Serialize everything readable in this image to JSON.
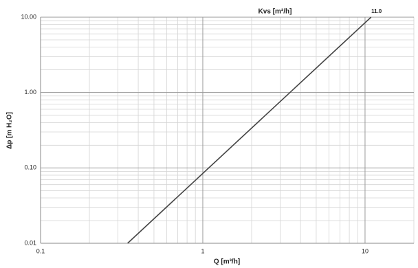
{
  "chart_data": {
    "type": "line",
    "title": "Kvs [m³/h]",
    "annotation": "11.0",
    "x_label": "Q [m³/h]",
    "y_label": "Δp [m H₂O]",
    "x": [
      0.344,
      10.89
    ],
    "series": [
      {
        "name": "11.0",
        "color": "#444444",
        "values": [
          0.01,
          10
        ]
      }
    ],
    "xlim": [
      0.1,
      20
    ],
    "ylim": [
      0.01,
      10
    ],
    "xticks": [
      0.1,
      1,
      10
    ],
    "yticks": [
      {
        "value": 0.01,
        "label": "0.01"
      },
      {
        "value": 0.1,
        "label": "0.10"
      },
      {
        "value": 1,
        "label": "1.00"
      },
      {
        "value": 10,
        "label": "10.00"
      }
    ],
    "log_x": true,
    "log_y": true,
    "grid": true
  }
}
